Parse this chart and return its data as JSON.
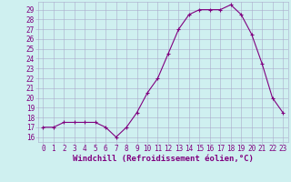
{
  "x": [
    0,
    1,
    2,
    3,
    4,
    5,
    6,
    7,
    8,
    9,
    10,
    11,
    12,
    13,
    14,
    15,
    16,
    17,
    18,
    19,
    20,
    21,
    22,
    23
  ],
  "y": [
    17.0,
    17.0,
    17.5,
    17.5,
    17.5,
    17.5,
    17.0,
    16.0,
    17.0,
    18.5,
    20.5,
    22.0,
    24.5,
    27.0,
    28.5,
    29.0,
    29.0,
    29.0,
    29.5,
    28.5,
    26.5,
    23.5,
    20.0,
    18.5
  ],
  "line_color": "#800080",
  "marker": "+",
  "marker_size": 3.5,
  "bg_color": "#cff0f0",
  "grid_color": "#aaaacc",
  "xlabel": "Windchill (Refroidissement éolien,°C)",
  "xlabel_color": "#800080",
  "ylabel_ticks": [
    16,
    17,
    18,
    19,
    20,
    21,
    22,
    23,
    24,
    25,
    26,
    27,
    28,
    29
  ],
  "ylim": [
    15.5,
    29.8
  ],
  "xlim": [
    -0.5,
    23.5
  ],
  "tick_color": "#800080",
  "tick_fontsize": 5.5,
  "xlabel_fontsize": 6.5,
  "linewidth": 0.8
}
